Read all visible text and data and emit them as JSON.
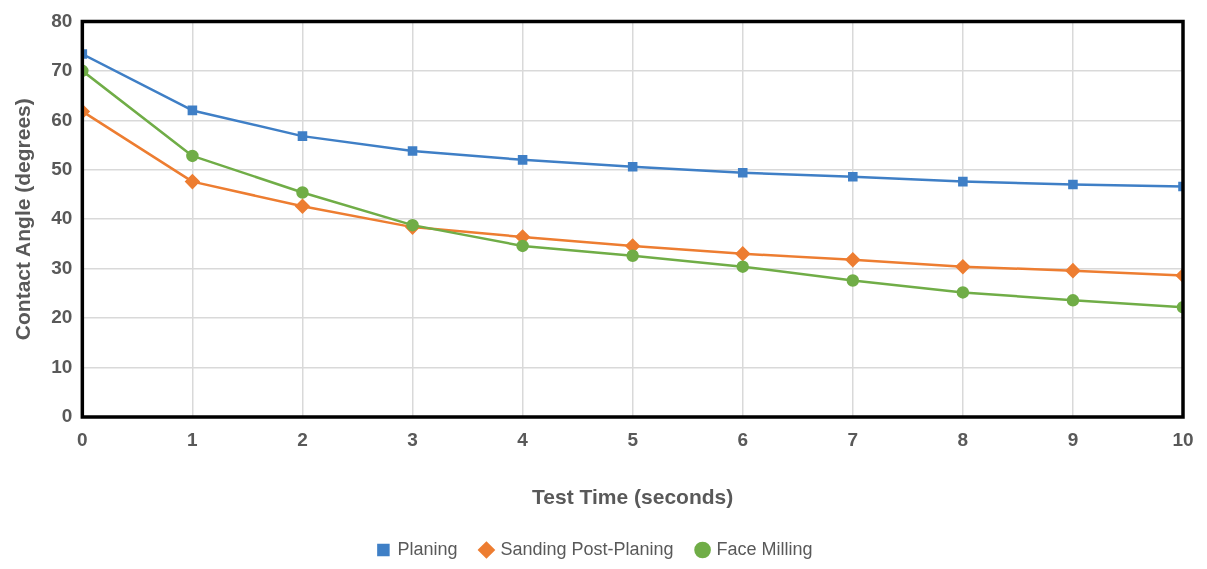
{
  "chart_data": {
    "type": "line",
    "xlabel": "Test Time (seconds)",
    "ylabel": "Contact Angle (degrees)",
    "x": [
      0,
      1,
      2,
      3,
      4,
      5,
      6,
      7,
      8,
      9,
      10
    ],
    "xlim": [
      0,
      10
    ],
    "xticks": [
      0,
      1,
      2,
      3,
      4,
      5,
      6,
      7,
      8,
      9,
      10
    ],
    "ylim": [
      0,
      80
    ],
    "yticks": [
      0,
      10,
      20,
      30,
      40,
      50,
      60,
      70,
      80
    ],
    "grid": true,
    "legend": "bottom",
    "line_style": "solid",
    "series": [
      {
        "name": "Planing",
        "color": "#3f7fc6",
        "marker": "square",
        "values": [
          73.4,
          62,
          56.8,
          53.8,
          52,
          50.6,
          49.4,
          48.6,
          47.6,
          47,
          46.6
        ]
      },
      {
        "name": "Sanding Post-Planing",
        "color": "#ed7d31",
        "marker": "diamond",
        "values": [
          61.8,
          47.6,
          42.6,
          38.4,
          36.4,
          34.6,
          33,
          31.8,
          30.4,
          29.6,
          28.6
        ]
      },
      {
        "name": "Face Milling",
        "color": "#70ad47",
        "marker": "circle",
        "values": [
          70,
          52.8,
          45.4,
          38.8,
          34.6,
          32.6,
          30.4,
          27.6,
          25.2,
          23.6,
          22.2
        ]
      }
    ]
  }
}
